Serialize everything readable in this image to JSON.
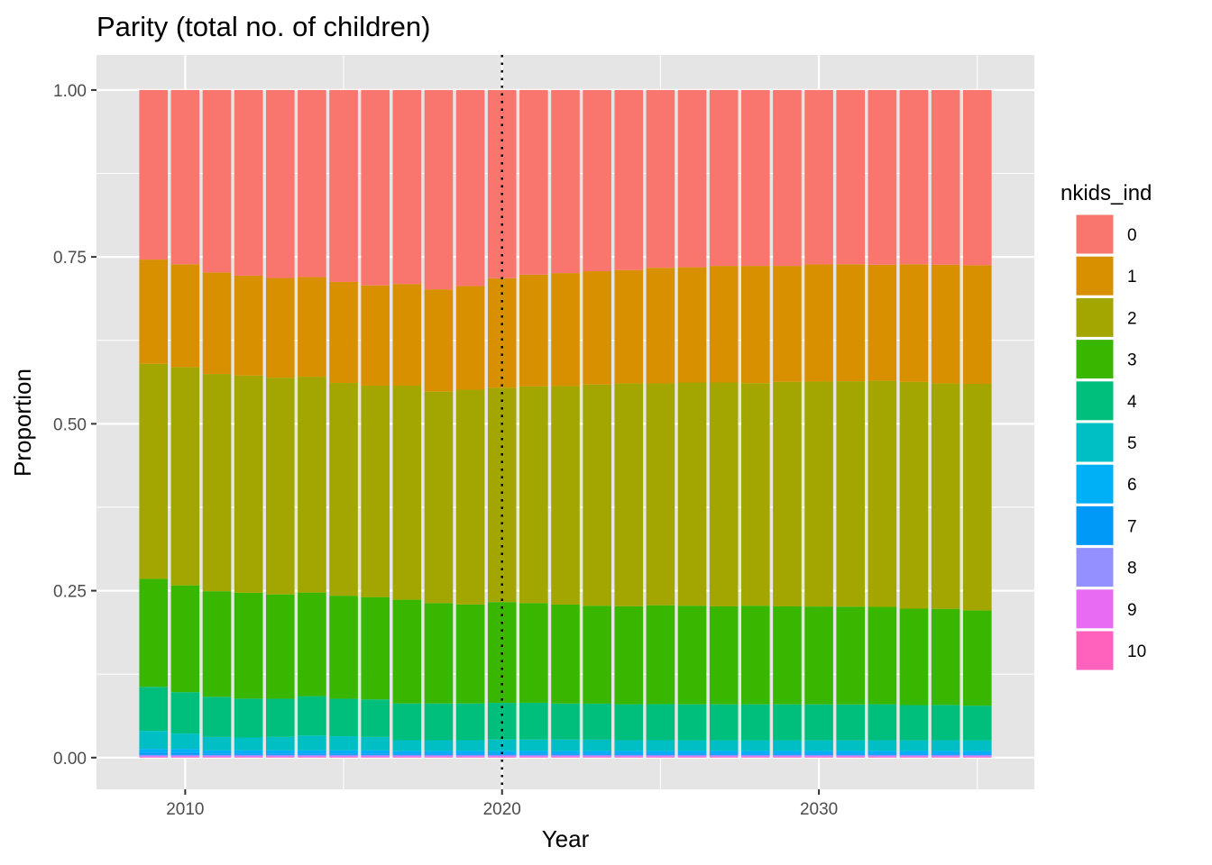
{
  "colors": {
    "panel_background": "#e5e5e5",
    "grid": "#ffffff",
    "text": "#000000",
    "tick_text": "#4d4d4d",
    "vline": "#000000"
  },
  "chart_data": {
    "type": "bar",
    "stacked": true,
    "title": "Parity (total no. of children)",
    "xlabel": "Year",
    "ylabel": "Proportion",
    "xlim": [
      2007.2,
      2036.8
    ],
    "ylim": [
      -0.0475,
      1.0525
    ],
    "x_ticks": [
      2010,
      2020,
      2030
    ],
    "x_tick_labels": [
      "2010",
      "2020",
      "2030"
    ],
    "y_ticks": [
      0,
      0.25,
      0.5,
      0.75,
      1.0
    ],
    "y_tick_labels": [
      "0.00",
      "0.25",
      "0.50",
      "0.75",
      "1.00"
    ],
    "grid": true,
    "vline": {
      "x": 2020,
      "style": "dotted"
    },
    "legend": {
      "title": "nkids_ind",
      "position": "right",
      "labels": [
        "0",
        "1",
        "2",
        "3",
        "4",
        "5",
        "6",
        "7",
        "8",
        "9",
        "10"
      ],
      "colors": [
        "#F8766D",
        "#D89000",
        "#A3A500",
        "#39B600",
        "#00BF7D",
        "#00BFC4",
        "#00B0F6",
        "#0099F8",
        "#9590FF",
        "#E76BF3",
        "#FF62BC"
      ]
    },
    "x": [
      2009,
      2010,
      2011,
      2012,
      2013,
      2014,
      2015,
      2016,
      2017,
      2018,
      2019,
      2020,
      2021,
      2022,
      2023,
      2024,
      2025,
      2026,
      2027,
      2028,
      2029,
      2030,
      2031,
      2032,
      2033,
      2034,
      2035
    ],
    "series": [
      {
        "name": "10",
        "values": [
          0.001,
          0.001,
          0.001,
          0.001,
          0.001,
          0.001,
          0.001,
          0.001,
          0.001,
          0.001,
          0.001,
          0.001,
          0.001,
          0.001,
          0.001,
          0.001,
          0.001,
          0.001,
          0.001,
          0.001,
          0.001,
          0.001,
          0.001,
          0.001,
          0.001,
          0.001,
          0.001
        ]
      },
      {
        "name": "9",
        "values": [
          0.001,
          0.001,
          0.001,
          0.001,
          0.001,
          0.001,
          0.001,
          0.001,
          0.001,
          0.001,
          0.001,
          0.001,
          0.001,
          0.001,
          0.001,
          0.001,
          0.001,
          0.001,
          0.001,
          0.001,
          0.001,
          0.001,
          0.001,
          0.001,
          0.001,
          0.001,
          0.001
        ]
      },
      {
        "name": "8",
        "values": [
          0.002,
          0.002,
          0.002,
          0.002,
          0.002,
          0.002,
          0.002,
          0.002,
          0.002,
          0.002,
          0.002,
          0.002,
          0.002,
          0.002,
          0.002,
          0.002,
          0.002,
          0.002,
          0.002,
          0.002,
          0.002,
          0.002,
          0.002,
          0.002,
          0.002,
          0.002,
          0.002
        ]
      },
      {
        "name": "7",
        "values": [
          0.003,
          0.003,
          0.002,
          0.002,
          0.002,
          0.002,
          0.002,
          0.002,
          0.002,
          0.002,
          0.002,
          0.002,
          0.002,
          0.002,
          0.002,
          0.002,
          0.002,
          0.002,
          0.002,
          0.002,
          0.002,
          0.002,
          0.002,
          0.002,
          0.002,
          0.002,
          0.002
        ]
      },
      {
        "name": "6",
        "values": [
          0.006,
          0.006,
          0.005,
          0.005,
          0.005,
          0.005,
          0.005,
          0.005,
          0.004,
          0.004,
          0.004,
          0.004,
          0.004,
          0.004,
          0.004,
          0.004,
          0.004,
          0.004,
          0.004,
          0.004,
          0.004,
          0.004,
          0.004,
          0.004,
          0.004,
          0.004,
          0.004
        ]
      },
      {
        "name": "5",
        "values": [
          0.027,
          0.023,
          0.02,
          0.019,
          0.02,
          0.022,
          0.021,
          0.02,
          0.016,
          0.016,
          0.016,
          0.017,
          0.017,
          0.017,
          0.017,
          0.016,
          0.016,
          0.016,
          0.016,
          0.016,
          0.016,
          0.016,
          0.016,
          0.016,
          0.016,
          0.016,
          0.016
        ]
      },
      {
        "name": "4",
        "values": [
          0.066,
          0.062,
          0.06,
          0.058,
          0.057,
          0.059,
          0.056,
          0.056,
          0.055,
          0.055,
          0.055,
          0.055,
          0.055,
          0.054,
          0.054,
          0.054,
          0.054,
          0.054,
          0.054,
          0.054,
          0.054,
          0.054,
          0.054,
          0.054,
          0.053,
          0.053,
          0.052
        ]
      },
      {
        "name": "3",
        "values": [
          0.162,
          0.16,
          0.158,
          0.158,
          0.156,
          0.155,
          0.154,
          0.153,
          0.155,
          0.15,
          0.148,
          0.151,
          0.149,
          0.148,
          0.147,
          0.147,
          0.148,
          0.148,
          0.147,
          0.148,
          0.147,
          0.147,
          0.147,
          0.146,
          0.145,
          0.144,
          0.143
        ]
      },
      {
        "name": "2",
        "values": [
          0.322,
          0.327,
          0.325,
          0.324,
          0.324,
          0.323,
          0.318,
          0.316,
          0.32,
          0.316,
          0.321,
          0.321,
          0.324,
          0.327,
          0.332,
          0.334,
          0.332,
          0.335,
          0.336,
          0.334,
          0.337,
          0.338,
          0.339,
          0.339,
          0.341,
          0.338,
          0.34
        ]
      },
      {
        "name": "1",
        "values": [
          0.156,
          0.154,
          0.152,
          0.149,
          0.149,
          0.149,
          0.151,
          0.15,
          0.152,
          0.153,
          0.155,
          0.164,
          0.167,
          0.169,
          0.17,
          0.17,
          0.173,
          0.173,
          0.175,
          0.176,
          0.174,
          0.176,
          0.176,
          0.174,
          0.177,
          0.178,
          0.178
        ]
      },
      {
        "name": "0",
        "values": [
          0.254,
          0.261,
          0.273,
          0.277,
          0.281,
          0.28,
          0.287,
          0.292,
          0.29,
          0.298,
          0.293,
          0.282,
          0.276,
          0.274,
          0.272,
          0.27,
          0.266,
          0.266,
          0.264,
          0.264,
          0.264,
          0.262,
          0.262,
          0.262,
          0.262,
          0.262,
          0.263
        ]
      }
    ]
  }
}
